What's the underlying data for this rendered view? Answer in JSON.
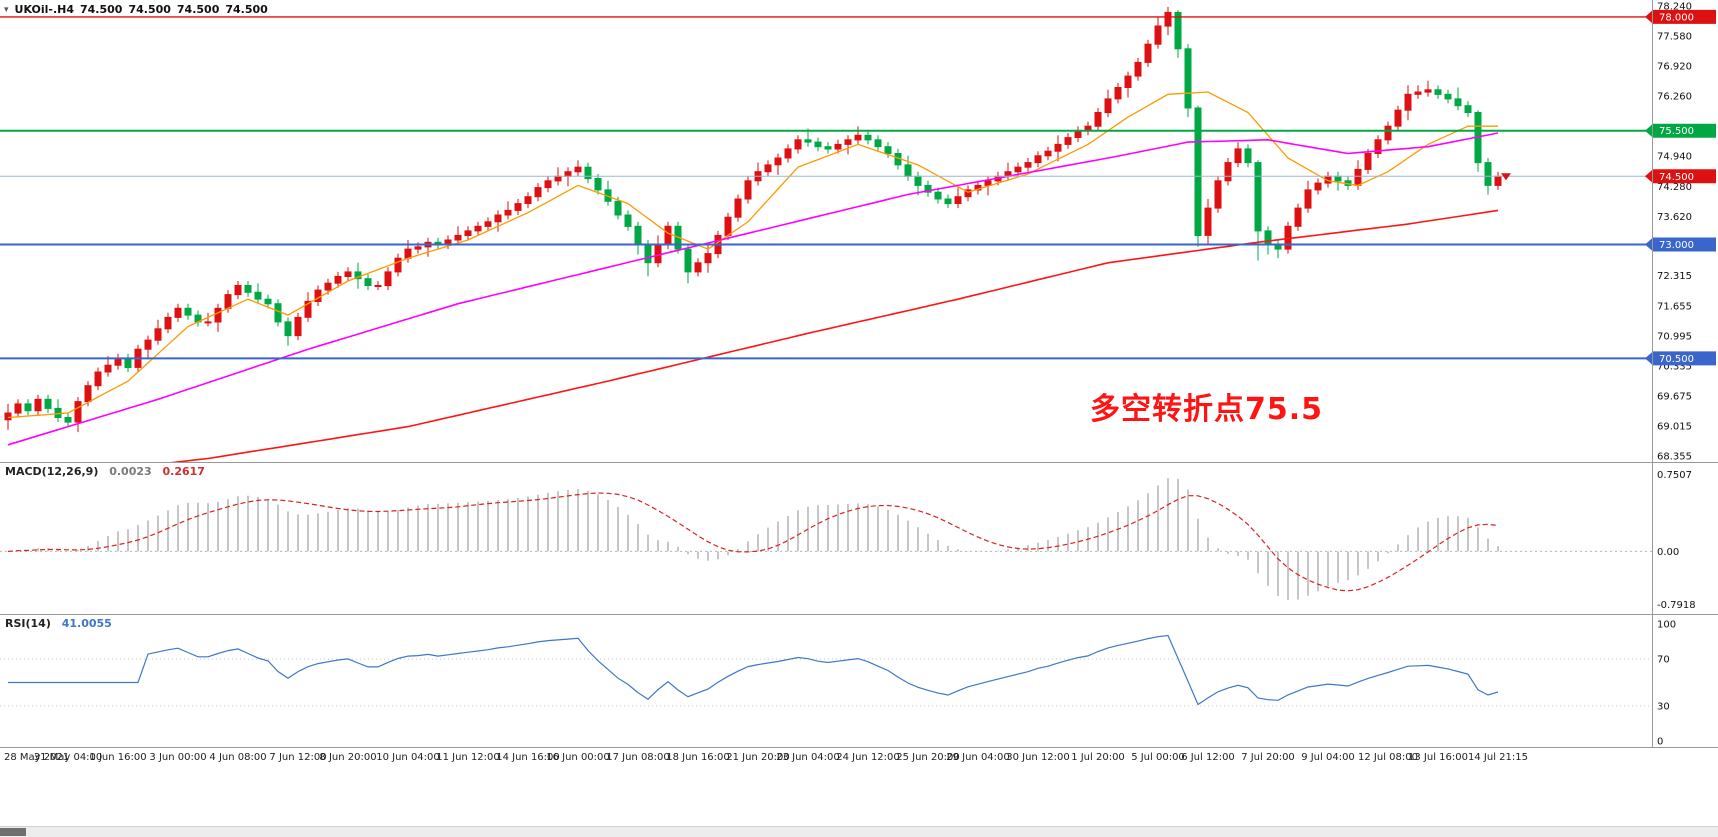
{
  "header": {
    "menu_icon": "▾",
    "symbol": "UKOil-.H4",
    "open": "74.500",
    "high": "74.500",
    "low": "74.500",
    "close": "74.500"
  },
  "chart_data": {
    "type": "candlestick",
    "symbol": "UKOil-",
    "timeframe": "H4",
    "color_convention": "red = bullish, green = bearish",
    "y_range": [
      68.355,
      78.24
    ],
    "colors": {
      "bull": "#dd1111",
      "bear": "#00a843",
      "background": "#ffffff",
      "axis_text": "#111111"
    },
    "price_axis_labels": [
      "78.240",
      "77.580",
      "76.920",
      "76.260",
      "74.940",
      "74.280",
      "73.620",
      "72.315",
      "71.655",
      "70.995",
      "70.335",
      "69.675",
      "69.015",
      "68.355"
    ],
    "price_lines": [
      {
        "price": 78.0,
        "label": "78.000",
        "color": "#dd1111",
        "width": 1.4
      },
      {
        "price": 75.5,
        "label": "75.500",
        "color": "#00a843",
        "width": 2
      },
      {
        "price": 74.5,
        "label": "74.500",
        "color": "#dd1111",
        "line_color": "#9fb6cf",
        "width": 1
      },
      {
        "price": 73.0,
        "label": "73.000",
        "color": "#3a66cc",
        "width": 2
      },
      {
        "price": 70.5,
        "label": "70.500",
        "color": "#3a66cc",
        "width": 2
      }
    ],
    "bid": {
      "price": 74.5,
      "label": "74.500",
      "color": "#dd1111"
    },
    "annotation": {
      "text": "多空转折点75.5",
      "color": "#ff1414"
    },
    "moving_averages": [
      {
        "name": "fast-orange",
        "color": "#ff9900",
        "width": 1.3,
        "points": [
          [
            0,
            69.2
          ],
          [
            6,
            69.3
          ],
          [
            12,
            70.0
          ],
          [
            18,
            71.2
          ],
          [
            24,
            71.8
          ],
          [
            28,
            71.45
          ],
          [
            34,
            72.2
          ],
          [
            40,
            72.7
          ],
          [
            46,
            73.1
          ],
          [
            52,
            73.7
          ],
          [
            57,
            74.3
          ],
          [
            62,
            73.9
          ],
          [
            66,
            73.25
          ],
          [
            70,
            72.9
          ],
          [
            74,
            73.5
          ],
          [
            79,
            74.7
          ],
          [
            85,
            75.2
          ],
          [
            91,
            74.75
          ],
          [
            96,
            74.15
          ],
          [
            102,
            74.55
          ],
          [
            108,
            75.2
          ],
          [
            112,
            75.8
          ],
          [
            116,
            76.3
          ],
          [
            120,
            76.35
          ],
          [
            124,
            75.9
          ],
          [
            128,
            74.9
          ],
          [
            132,
            74.4
          ],
          [
            135,
            74.3
          ],
          [
            138,
            74.6
          ],
          [
            142,
            75.2
          ],
          [
            146,
            75.6
          ],
          [
            149,
            75.6
          ]
        ]
      },
      {
        "name": "mid-magenta",
        "color": "#ff00ff",
        "width": 1.6,
        "points": [
          [
            0,
            68.6
          ],
          [
            15,
            69.6
          ],
          [
            30,
            70.7
          ],
          [
            45,
            71.7
          ],
          [
            60,
            72.5
          ],
          [
            75,
            73.3
          ],
          [
            90,
            74.1
          ],
          [
            100,
            74.5
          ],
          [
            110,
            74.9
          ],
          [
            118,
            75.25
          ],
          [
            126,
            75.3
          ],
          [
            134,
            75.0
          ],
          [
            142,
            75.15
          ],
          [
            149,
            75.45
          ]
        ]
      },
      {
        "name": "slow-red",
        "color": "#ff1414",
        "width": 1.6,
        "points": [
          [
            0,
            67.8
          ],
          [
            20,
            68.3
          ],
          [
            40,
            69.0
          ],
          [
            60,
            70.0
          ],
          [
            80,
            71.05
          ],
          [
            95,
            71.8
          ],
          [
            110,
            72.6
          ],
          [
            125,
            73.05
          ],
          [
            140,
            73.45
          ],
          [
            149,
            73.75
          ]
        ]
      }
    ],
    "macd": {
      "label": "MACD(12,26,9)",
      "value_main": "0.0023",
      "value_signal": "0.2617",
      "fast": 12,
      "slow": 26,
      "signal": 9,
      "axis_labels": [
        "0.7507",
        "0.00",
        "-0.7918"
      ],
      "hist_color": "#c6c6c6",
      "signal_color": "#dd2020"
    },
    "rsi": {
      "label": "RSI(14)",
      "value": "41.0055",
      "period": 14,
      "axis_labels": [
        "100",
        "70",
        "30",
        "0"
      ],
      "levels": [
        70,
        30
      ],
      "color": "#3f76c8"
    },
    "time_labels": [
      "28 May 2021",
      "31 May 04:00",
      "1 Jun 16:00",
      "3 Jun 00:00",
      "4 Jun 08:00",
      "7 Jun 12:00",
      "8 Jun 20:00",
      "10 Jun 04:00",
      "11 Jun 12:00",
      "14 Jun 16:00",
      "16 Jun 00:00",
      "17 Jun 08:00",
      "18 Jun 16:00",
      "21 Jun 20:00",
      "23 Jun 04:00",
      "24 Jun 12:00",
      "25 Jun 20:00",
      "29 Jun 04:00",
      "30 Jun 12:00",
      "1 Jul 20:00",
      "5 Jul 00:00",
      "6 Jul 12:00",
      "7 Jul 20:00",
      "9 Jul 04:00",
      "12 Jul 08:00",
      "13 Jul 16:00",
      "14 Jul 21:15"
    ],
    "candles": [
      [
        69.15,
        69.5,
        68.93,
        69.3
      ],
      [
        69.3,
        69.6,
        69.2,
        69.5
      ],
      [
        69.5,
        69.6,
        69.25,
        69.35
      ],
      [
        69.35,
        69.7,
        69.25,
        69.6
      ],
      [
        69.6,
        69.7,
        69.3,
        69.4
      ],
      [
        69.4,
        69.6,
        69.1,
        69.2
      ],
      [
        69.2,
        69.3,
        69.0,
        69.1
      ],
      [
        69.1,
        69.65,
        68.88,
        69.55
      ],
      [
        69.55,
        70.0,
        69.45,
        69.9
      ],
      [
        69.9,
        70.3,
        69.8,
        70.2
      ],
      [
        70.2,
        70.55,
        70.1,
        70.35
      ],
      [
        70.35,
        70.6,
        70.25,
        70.5
      ],
      [
        70.5,
        70.6,
        70.2,
        70.3
      ],
      [
        70.3,
        70.8,
        70.2,
        70.7
      ],
      [
        70.7,
        71.0,
        70.48,
        70.9
      ],
      [
        70.9,
        71.35,
        70.8,
        71.15
      ],
      [
        71.15,
        71.5,
        71.05,
        71.4
      ],
      [
        71.4,
        71.7,
        71.3,
        71.6
      ],
      [
        71.6,
        71.7,
        71.35,
        71.45
      ],
      [
        71.45,
        71.55,
        71.2,
        71.3
      ],
      [
        71.3,
        71.5,
        71.2,
        71.3
      ],
      [
        71.3,
        71.7,
        71.08,
        71.6
      ],
      [
        71.6,
        72.0,
        71.5,
        71.9
      ],
      [
        71.9,
        72.2,
        71.8,
        72.1
      ],
      [
        72.1,
        72.2,
        71.85,
        71.95
      ],
      [
        71.95,
        72.15,
        71.7,
        71.8
      ],
      [
        71.8,
        71.9,
        71.6,
        71.7
      ],
      [
        71.7,
        71.8,
        71.2,
        71.3
      ],
      [
        71.3,
        71.4,
        70.78,
        71.0
      ],
      [
        71.0,
        71.5,
        70.9,
        71.4
      ],
      [
        71.4,
        71.95,
        71.3,
        71.75
      ],
      [
        71.75,
        72.1,
        71.65,
        72.0
      ],
      [
        72.0,
        72.25,
        71.9,
        72.15
      ],
      [
        72.15,
        72.4,
        72.05,
        72.3
      ],
      [
        72.3,
        72.5,
        72.2,
        72.4
      ],
      [
        72.4,
        72.6,
        72.03,
        72.25
      ],
      [
        72.25,
        72.35,
        72.0,
        72.1
      ],
      [
        72.1,
        72.2,
        72.0,
        72.1
      ],
      [
        72.1,
        72.5,
        72.0,
        72.4
      ],
      [
        72.4,
        72.8,
        72.3,
        72.7
      ],
      [
        72.7,
        73.1,
        72.6,
        72.9
      ],
      [
        72.9,
        73.05,
        72.8,
        72.95
      ],
      [
        72.95,
        73.15,
        72.73,
        73.05
      ],
      [
        73.05,
        73.15,
        72.9,
        73.0
      ],
      [
        73.0,
        73.2,
        72.9,
        73.1
      ],
      [
        73.1,
        73.4,
        73.0,
        73.2
      ],
      [
        73.2,
        73.4,
        73.1,
        73.3
      ],
      [
        73.3,
        73.5,
        73.2,
        73.4
      ],
      [
        73.4,
        73.6,
        73.3,
        73.5
      ],
      [
        73.5,
        73.75,
        73.28,
        73.65
      ],
      [
        73.65,
        73.95,
        73.55,
        73.75
      ],
      [
        73.75,
        74.0,
        73.65,
        73.9
      ],
      [
        73.9,
        74.15,
        73.8,
        74.05
      ],
      [
        74.05,
        74.35,
        73.95,
        74.25
      ],
      [
        74.25,
        74.5,
        74.15,
        74.4
      ],
      [
        74.4,
        74.7,
        74.3,
        74.5
      ],
      [
        74.5,
        74.7,
        74.28,
        74.6
      ],
      [
        74.6,
        74.85,
        74.5,
        74.7
      ],
      [
        74.7,
        74.8,
        74.35,
        74.45
      ],
      [
        74.45,
        74.55,
        74.1,
        74.2
      ],
      [
        74.2,
        74.4,
        73.85,
        73.95
      ],
      [
        73.95,
        74.05,
        73.55,
        73.65
      ],
      [
        73.65,
        73.75,
        73.3,
        73.4
      ],
      [
        73.4,
        73.5,
        72.78,
        73.0
      ],
      [
        73.0,
        73.1,
        72.3,
        72.6
      ],
      [
        72.6,
        73.2,
        72.5,
        73.0
      ],
      [
        73.0,
        73.5,
        72.9,
        73.4
      ],
      [
        73.4,
        73.5,
        72.8,
        72.9
      ],
      [
        72.9,
        73.0,
        72.15,
        72.4
      ],
      [
        72.4,
        72.7,
        72.3,
        72.6
      ],
      [
        72.6,
        73.0,
        72.38,
        72.8
      ],
      [
        72.8,
        73.3,
        72.7,
        73.2
      ],
      [
        73.2,
        73.7,
        73.1,
        73.6
      ],
      [
        73.6,
        74.1,
        73.5,
        74.0
      ],
      [
        74.0,
        74.5,
        73.9,
        74.4
      ],
      [
        74.4,
        74.8,
        74.3,
        74.6
      ],
      [
        74.6,
        74.85,
        74.5,
        74.75
      ],
      [
        74.75,
        75.0,
        74.53,
        74.9
      ],
      [
        74.9,
        75.2,
        74.8,
        75.1
      ],
      [
        75.1,
        75.4,
        75.0,
        75.3
      ],
      [
        75.3,
        75.55,
        75.15,
        75.25
      ],
      [
        75.25,
        75.35,
        75.05,
        75.15
      ],
      [
        75.15,
        75.25,
        75.0,
        75.1
      ],
      [
        75.1,
        75.3,
        75.0,
        75.2
      ],
      [
        75.2,
        75.4,
        74.98,
        75.3
      ],
      [
        75.3,
        75.6,
        75.2,
        75.4
      ],
      [
        75.4,
        75.5,
        75.2,
        75.3
      ],
      [
        75.3,
        75.4,
        75.05,
        75.15
      ],
      [
        75.15,
        75.25,
        74.9,
        75.0
      ],
      [
        75.0,
        75.1,
        74.65,
        74.75
      ],
      [
        74.75,
        74.95,
        74.4,
        74.5
      ],
      [
        74.5,
        74.6,
        74.08,
        74.3
      ],
      [
        74.3,
        74.4,
        74.05,
        74.15
      ],
      [
        74.15,
        74.25,
        73.9,
        74.0
      ],
      [
        74.0,
        74.1,
        73.8,
        73.9
      ],
      [
        73.9,
        74.25,
        73.8,
        74.05
      ],
      [
        74.05,
        74.3,
        73.95,
        74.2
      ],
      [
        74.2,
        74.4,
        74.1,
        74.3
      ],
      [
        74.3,
        74.5,
        74.08,
        74.4
      ],
      [
        74.4,
        74.6,
        74.3,
        74.5
      ],
      [
        74.5,
        74.8,
        74.4,
        74.6
      ],
      [
        74.6,
        74.8,
        74.5,
        74.7
      ],
      [
        74.7,
        74.9,
        74.6,
        74.8
      ],
      [
        74.8,
        75.05,
        74.7,
        74.95
      ],
      [
        74.95,
        75.15,
        74.85,
        75.05
      ],
      [
        75.05,
        75.4,
        74.83,
        75.2
      ],
      [
        75.2,
        75.45,
        75.1,
        75.35
      ],
      [
        75.35,
        75.6,
        75.25,
        75.5
      ],
      [
        75.5,
        75.7,
        75.4,
        75.6
      ],
      [
        75.6,
        76.0,
        75.5,
        75.9
      ],
      [
        75.9,
        76.4,
        75.8,
        76.2
      ],
      [
        76.2,
        76.55,
        76.1,
        76.45
      ],
      [
        76.45,
        76.8,
        76.23,
        76.7
      ],
      [
        76.7,
        77.1,
        76.6,
        77.0
      ],
      [
        77.0,
        77.5,
        76.9,
        77.4
      ],
      [
        77.4,
        78.0,
        77.3,
        77.8
      ],
      [
        77.8,
        78.22,
        77.6,
        78.1
      ],
      [
        78.1,
        78.15,
        77.1,
        77.3
      ],
      [
        77.3,
        77.4,
        75.8,
        76.0
      ],
      [
        76.0,
        76.05,
        72.95,
        73.2
      ],
      [
        73.2,
        74.0,
        73.0,
        73.8
      ],
      [
        73.8,
        74.5,
        73.7,
        74.4
      ],
      [
        74.4,
        74.9,
        74.3,
        74.8
      ],
      [
        74.8,
        75.25,
        74.7,
        75.1
      ],
      [
        75.1,
        75.2,
        74.7,
        74.8
      ],
      [
        74.8,
        74.85,
        72.65,
        73.3
      ],
      [
        73.3,
        73.4,
        72.78,
        73.0
      ],
      [
        73.0,
        73.1,
        72.7,
        72.9
      ],
      [
        72.9,
        73.5,
        72.8,
        73.4
      ],
      [
        73.4,
        73.9,
        73.3,
        73.8
      ],
      [
        73.8,
        74.4,
        73.7,
        74.2
      ],
      [
        74.2,
        74.45,
        74.1,
        74.35
      ],
      [
        74.35,
        74.6,
        74.25,
        74.5
      ],
      [
        74.5,
        74.6,
        74.18,
        74.4
      ],
      [
        74.4,
        74.5,
        74.2,
        74.3
      ],
      [
        74.3,
        74.85,
        74.2,
        74.65
      ],
      [
        74.65,
        75.1,
        74.55,
        75.0
      ],
      [
        75.0,
        75.4,
        74.9,
        75.3
      ],
      [
        75.3,
        75.7,
        75.2,
        75.6
      ],
      [
        75.6,
        76.05,
        75.5,
        75.95
      ],
      [
        75.95,
        76.5,
        75.73,
        76.3
      ],
      [
        76.3,
        76.5,
        76.2,
        76.35
      ],
      [
        76.35,
        76.6,
        76.25,
        76.4
      ],
      [
        76.4,
        76.5,
        76.2,
        76.3
      ],
      [
        76.3,
        76.4,
        76.1,
        76.2
      ],
      [
        76.2,
        76.45,
        75.95,
        76.05
      ],
      [
        76.05,
        76.15,
        75.8,
        75.9
      ],
      [
        75.9,
        75.95,
        74.6,
        74.8
      ],
      [
        74.8,
        74.9,
        74.1,
        74.3
      ],
      [
        74.3,
        74.6,
        74.2,
        74.5
      ]
    ]
  }
}
